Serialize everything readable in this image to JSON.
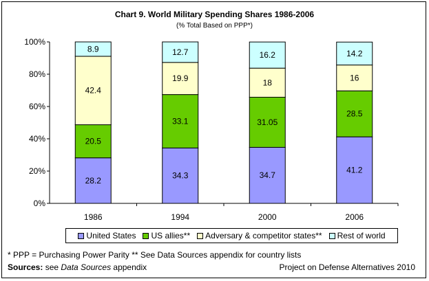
{
  "chart_data": {
    "type": "bar",
    "stacked": true,
    "title": "Chart 9. World Military Spending Shares 1986-2006",
    "subtitle": "(% Total Based on PPP*)",
    "categories": [
      "1986",
      "1994",
      "2000",
      "2006"
    ],
    "ylim": [
      0,
      100
    ],
    "yticks": [
      "0%",
      "20%",
      "40%",
      "60%",
      "80%",
      "100%"
    ],
    "series": [
      {
        "name": "United States",
        "color": "#9999FF",
        "values": [
          28.2,
          34.3,
          34.7,
          41.2
        ],
        "labels": [
          "28.2",
          "34.3",
          "34.7",
          "41.2"
        ]
      },
      {
        "name": "US allies**",
        "color": "#66CC00",
        "values": [
          20.5,
          33.1,
          31.05,
          28.5
        ],
        "labels": [
          "20.5",
          "33.1",
          "31.05",
          "28.5"
        ]
      },
      {
        "name": "Adversary & competitor states**",
        "color": "#FFFFCC",
        "values": [
          42.4,
          19.9,
          18,
          16
        ],
        "labels": [
          "42.4",
          "19.9",
          "18",
          "16"
        ]
      },
      {
        "name": "Rest of world",
        "color": "#CCFFFF",
        "values": [
          8.9,
          12.7,
          16.2,
          14.2
        ],
        "labels": [
          "8.9",
          "12.7",
          "16.2",
          "14.2"
        ]
      }
    ],
    "legend_position": "bottom",
    "grid": false
  },
  "footnote": "* PPP = Purchasing Power Parity  ** See Data Sources appendix for country lists",
  "sources": {
    "label": "Sources:",
    "prefix": " see ",
    "italic": "Data Sources",
    "suffix": " appendix"
  },
  "project": "Project on Defense Alternatives 2010"
}
